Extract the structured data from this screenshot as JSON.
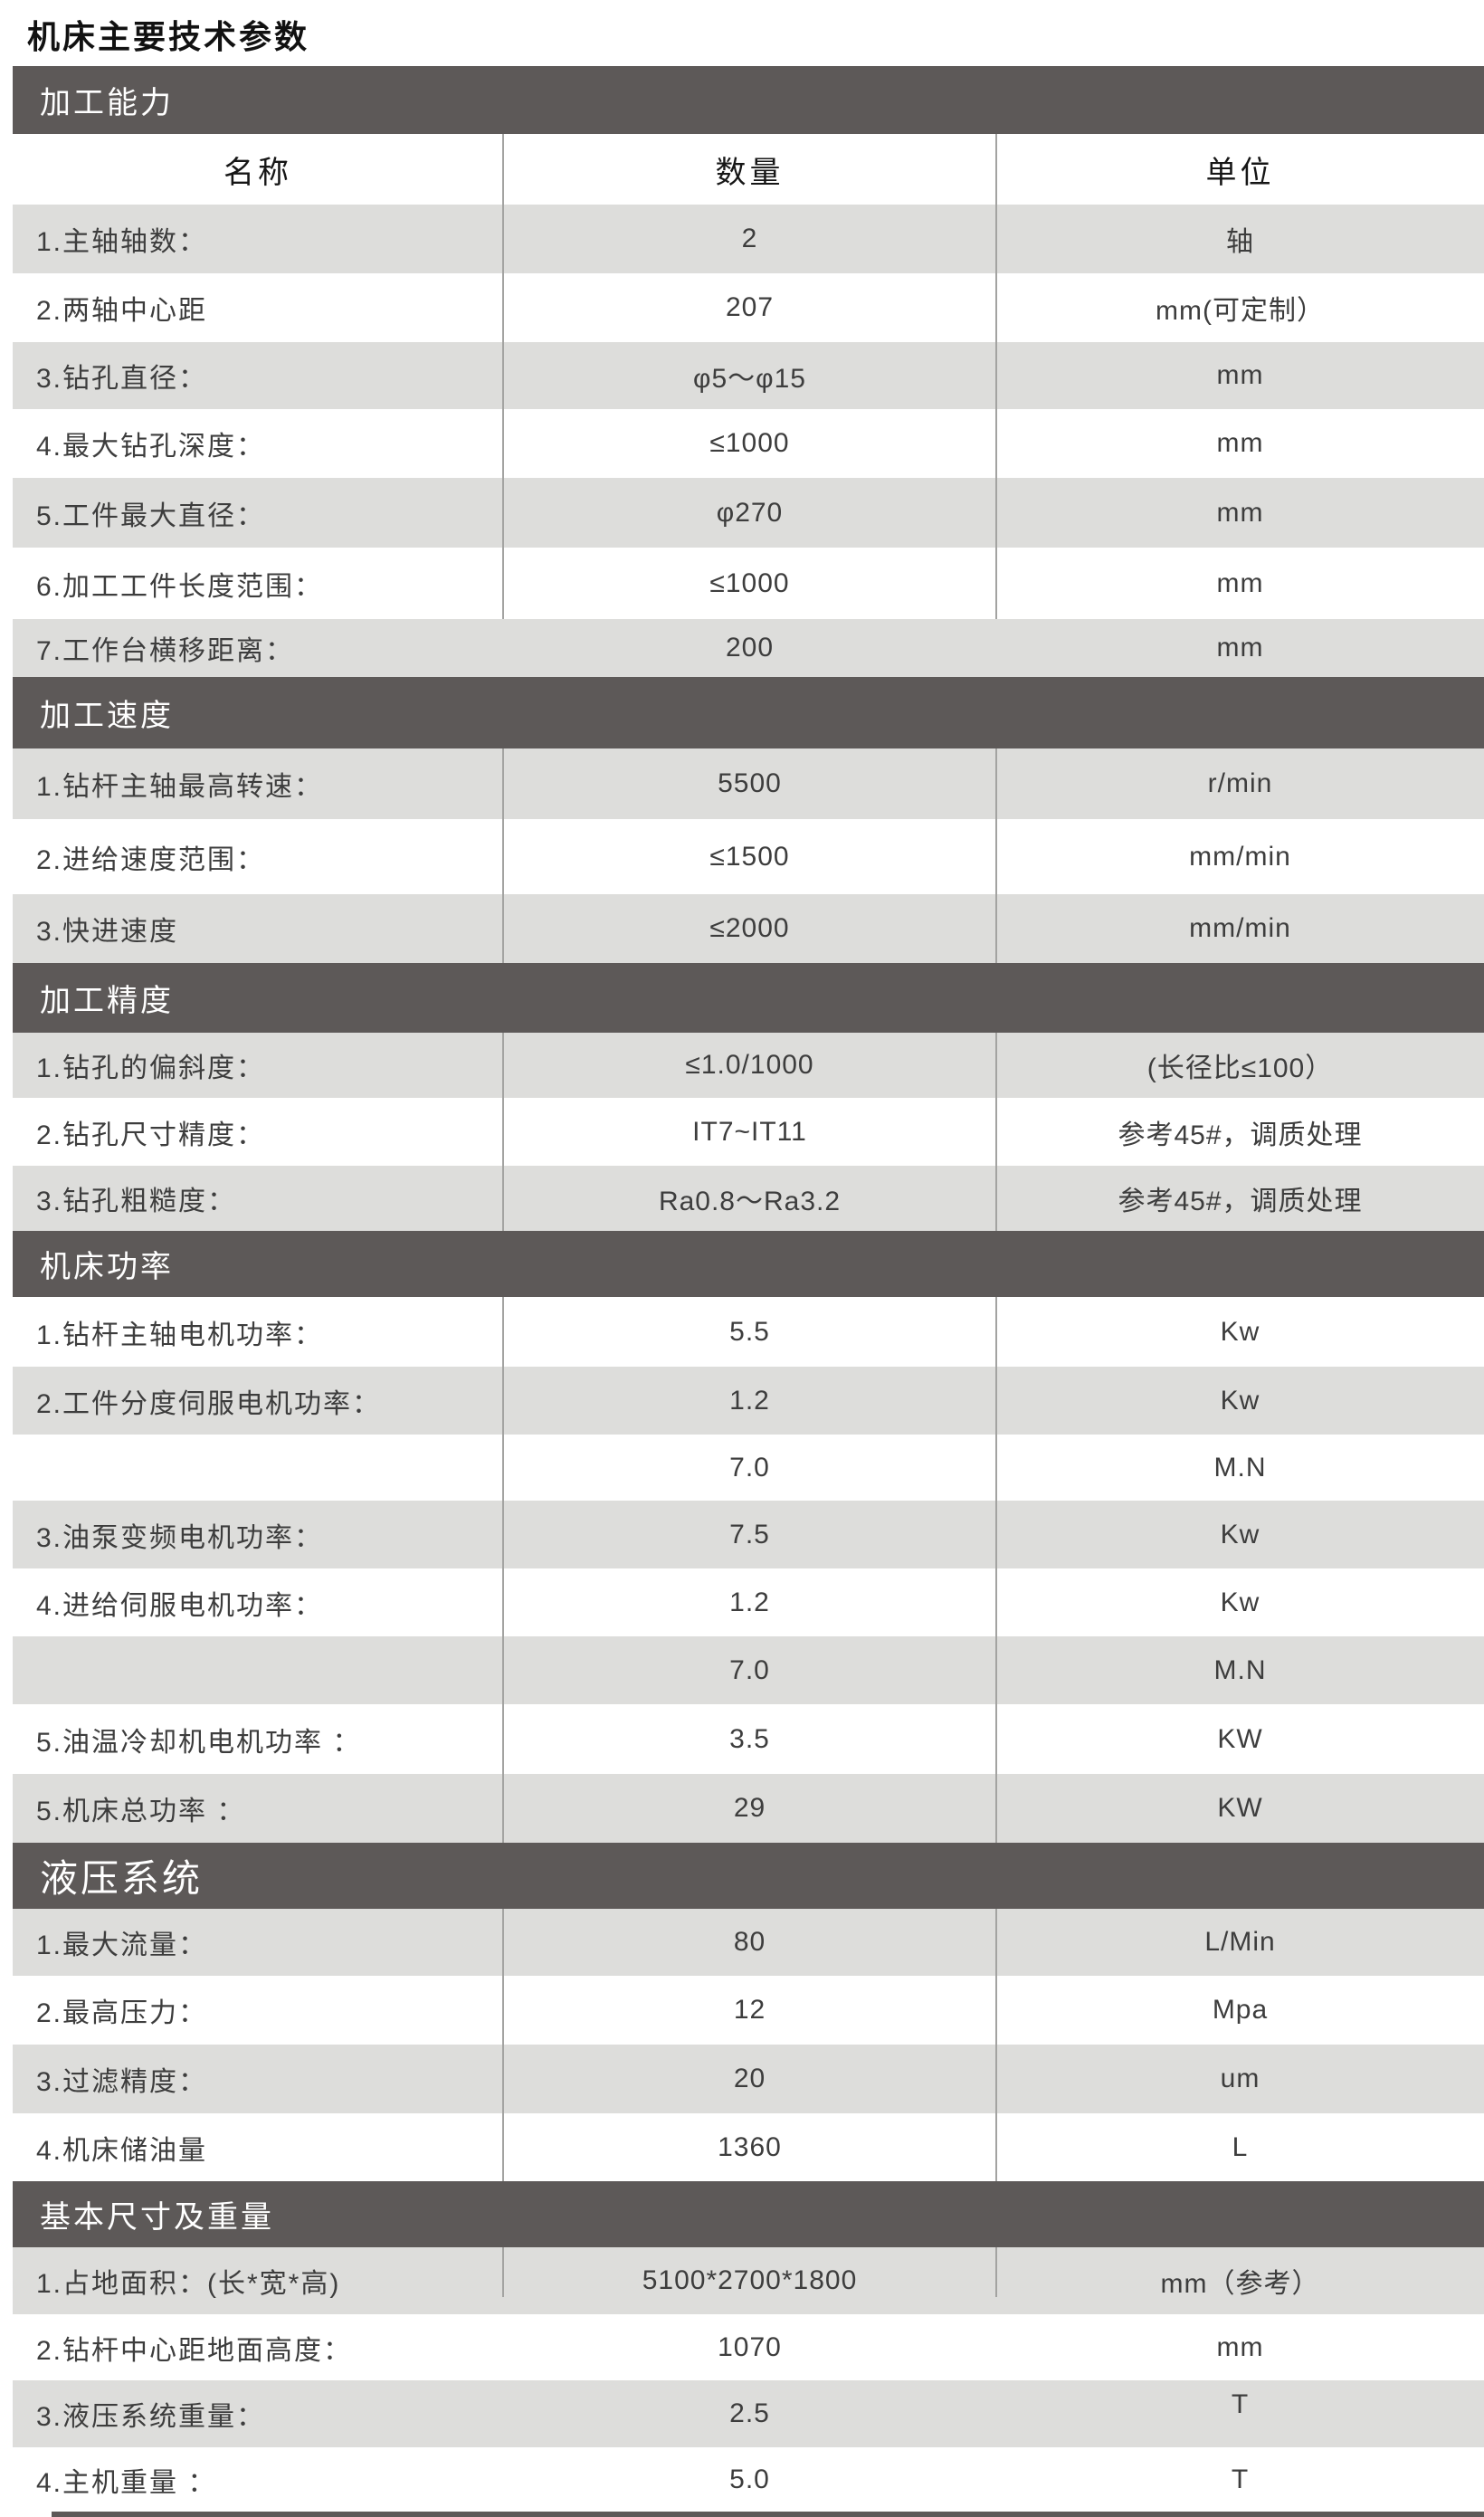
{
  "page": {
    "title": "机床主要技术参数"
  },
  "colors": {
    "section_band": "#5d5958",
    "row_gray": "#dddddb",
    "row_white": "#ffffff",
    "divider_line": "#a3a3a1",
    "body_text": "#3d3d3d"
  },
  "table": {
    "header": {
      "col1": "名称",
      "col2": "数量",
      "col3": "单位"
    },
    "sections": [
      {
        "band": "加工能力",
        "rows": [
          {
            "label": "1.主轴轴数：",
            "value": "2",
            "unit": "轴"
          },
          {
            "label": "2.两轴中心距",
            "value": "207",
            "unit": "mm(可定制）"
          },
          {
            "label": "3.钻孔直径：",
            "value": "φ5～φ15",
            "unit": "mm"
          },
          {
            "label": "4.最大钻孔深度：",
            "value": "≤1000",
            "unit": "mm"
          },
          {
            "label": "5.工件最大直径：",
            "value": "φ270",
            "unit": "mm"
          },
          {
            "label": "6.加工工件长度范围：",
            "value": "≤1000",
            "unit": "mm"
          },
          {
            "label": "7.工作台横移距离：",
            "value": "200",
            "unit": "mm"
          }
        ]
      },
      {
        "band": "加工速度",
        "rows": [
          {
            "label": "1.钻杆主轴最高转速：",
            "value": "5500",
            "unit": "r/min"
          },
          {
            "label": "2.进给速度范围：",
            "value": "≤1500",
            "unit": "mm/min"
          },
          {
            "label": "3.快进速度",
            "value": "≤2000",
            "unit": "mm/min"
          }
        ]
      },
      {
        "band": "加工精度",
        "rows": [
          {
            "label": "1.钻孔的偏斜度：",
            "value": "≤1.0/1000",
            "unit": "(长径比≤100）"
          },
          {
            "label": "2.钻孔尺寸精度：",
            "value": "IT7~IT11",
            "unit": "参考45#，调质处理"
          },
          {
            "label": "3.钻孔粗糙度：",
            "value": "Ra0.8～Ra3.2",
            "unit": "参考45#，调质处理"
          }
        ]
      },
      {
        "band": "机床功率",
        "rows": [
          {
            "label": "1.钻杆主轴电机功率：",
            "value": "5.5",
            "unit": "Kw"
          },
          {
            "label": "2.工件分度伺服电机功率：",
            "value": "1.2",
            "unit": "Kw"
          },
          {
            "label": "",
            "value": "7.0",
            "unit": "M.N"
          },
          {
            "label": "3.油泵变频电机功率：",
            "value": "7.5",
            "unit": "Kw"
          },
          {
            "label": "4.进给伺服电机功率：",
            "value": "1.2",
            "unit": "Kw"
          },
          {
            "label": "",
            "value": "7.0",
            "unit": "M.N"
          },
          {
            "label": "5.油温冷却机电机功率 ：",
            "value": "3.5",
            "unit": "KW"
          },
          {
            "label": "5.机床总功率 ：",
            "value": "29",
            "unit": "KW"
          }
        ]
      },
      {
        "band": "液压系统",
        "rows": [
          {
            "label": "1.最大流量：",
            "value": "80",
            "unit": "L/Min"
          },
          {
            "label": "2.最高压力：",
            "value": "12",
            "unit": "Mpa"
          },
          {
            "label": "3.过滤精度：",
            "value": "20",
            "unit": "um"
          },
          {
            "label": "4.机床储油量",
            "value": "1360",
            "unit": "L"
          }
        ]
      },
      {
        "band": "基本尺寸及重量",
        "rows": [
          {
            "label": "1.占地面积：(长*宽*高)",
            "value": "5100*2700*1800",
            "unit": "mm（参考）"
          },
          {
            "label": "2.钻杆中心距地面高度：",
            "value": "1070",
            "unit": "mm"
          },
          {
            "label": "3.液压系统重量：",
            "value": "2.5",
            "unit": "T"
          },
          {
            "label": "4.主机重量 ：",
            "value": "5.0",
            "unit": "T"
          }
        ]
      }
    ]
  }
}
